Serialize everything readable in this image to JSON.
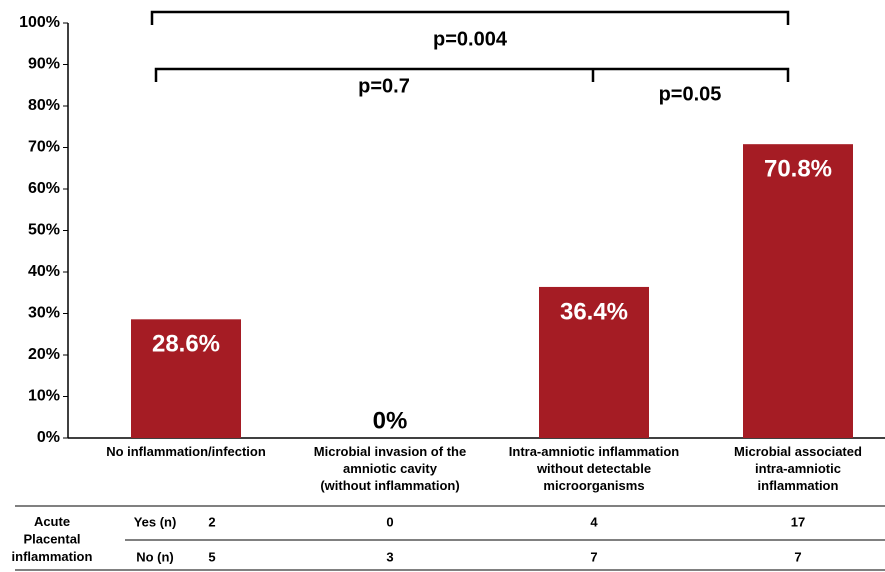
{
  "chart_data": {
    "type": "bar",
    "categories": [
      "No inflammation/infection",
      "Microbial invasion of the\namniotic cavity\n(without inflammation)",
      "Intra-amniotic inflammation\nwithout detectable\nmicroorganisms",
      "Microbial associated\nintra-amniotic\ninflammation"
    ],
    "values": [
      28.6,
      0,
      36.4,
      70.8
    ],
    "value_labels": [
      "28.6%",
      "0%",
      "36.4%",
      "70.8%"
    ],
    "color": "#a51c24",
    "ylim": [
      0,
      100
    ],
    "yticks": [
      {
        "value": 0,
        "label": "0%"
      },
      {
        "value": 10,
        "label": "10%"
      },
      {
        "value": 20,
        "label": "20%"
      },
      {
        "value": 30,
        "label": "30%"
      },
      {
        "value": 40,
        "label": "40%"
      },
      {
        "value": 50,
        "label": "50%"
      },
      {
        "value": 60,
        "label": "60%"
      },
      {
        "value": 70,
        "label": "70%"
      },
      {
        "value": 80,
        "label": "80%"
      },
      {
        "value": 90,
        "label": "90%"
      },
      {
        "value": 100,
        "label": "100%"
      }
    ],
    "annotations": [
      "p=0.004",
      "p=0.7",
      "p=0.05"
    ],
    "table": {
      "row_header": "Acute Placental inflammation",
      "rows": [
        {
          "label": "Yes (n)",
          "values": [
            2,
            0,
            4,
            17
          ]
        },
        {
          "label": "No (n)",
          "values": [
            5,
            3,
            7,
            7
          ]
        }
      ]
    }
  }
}
